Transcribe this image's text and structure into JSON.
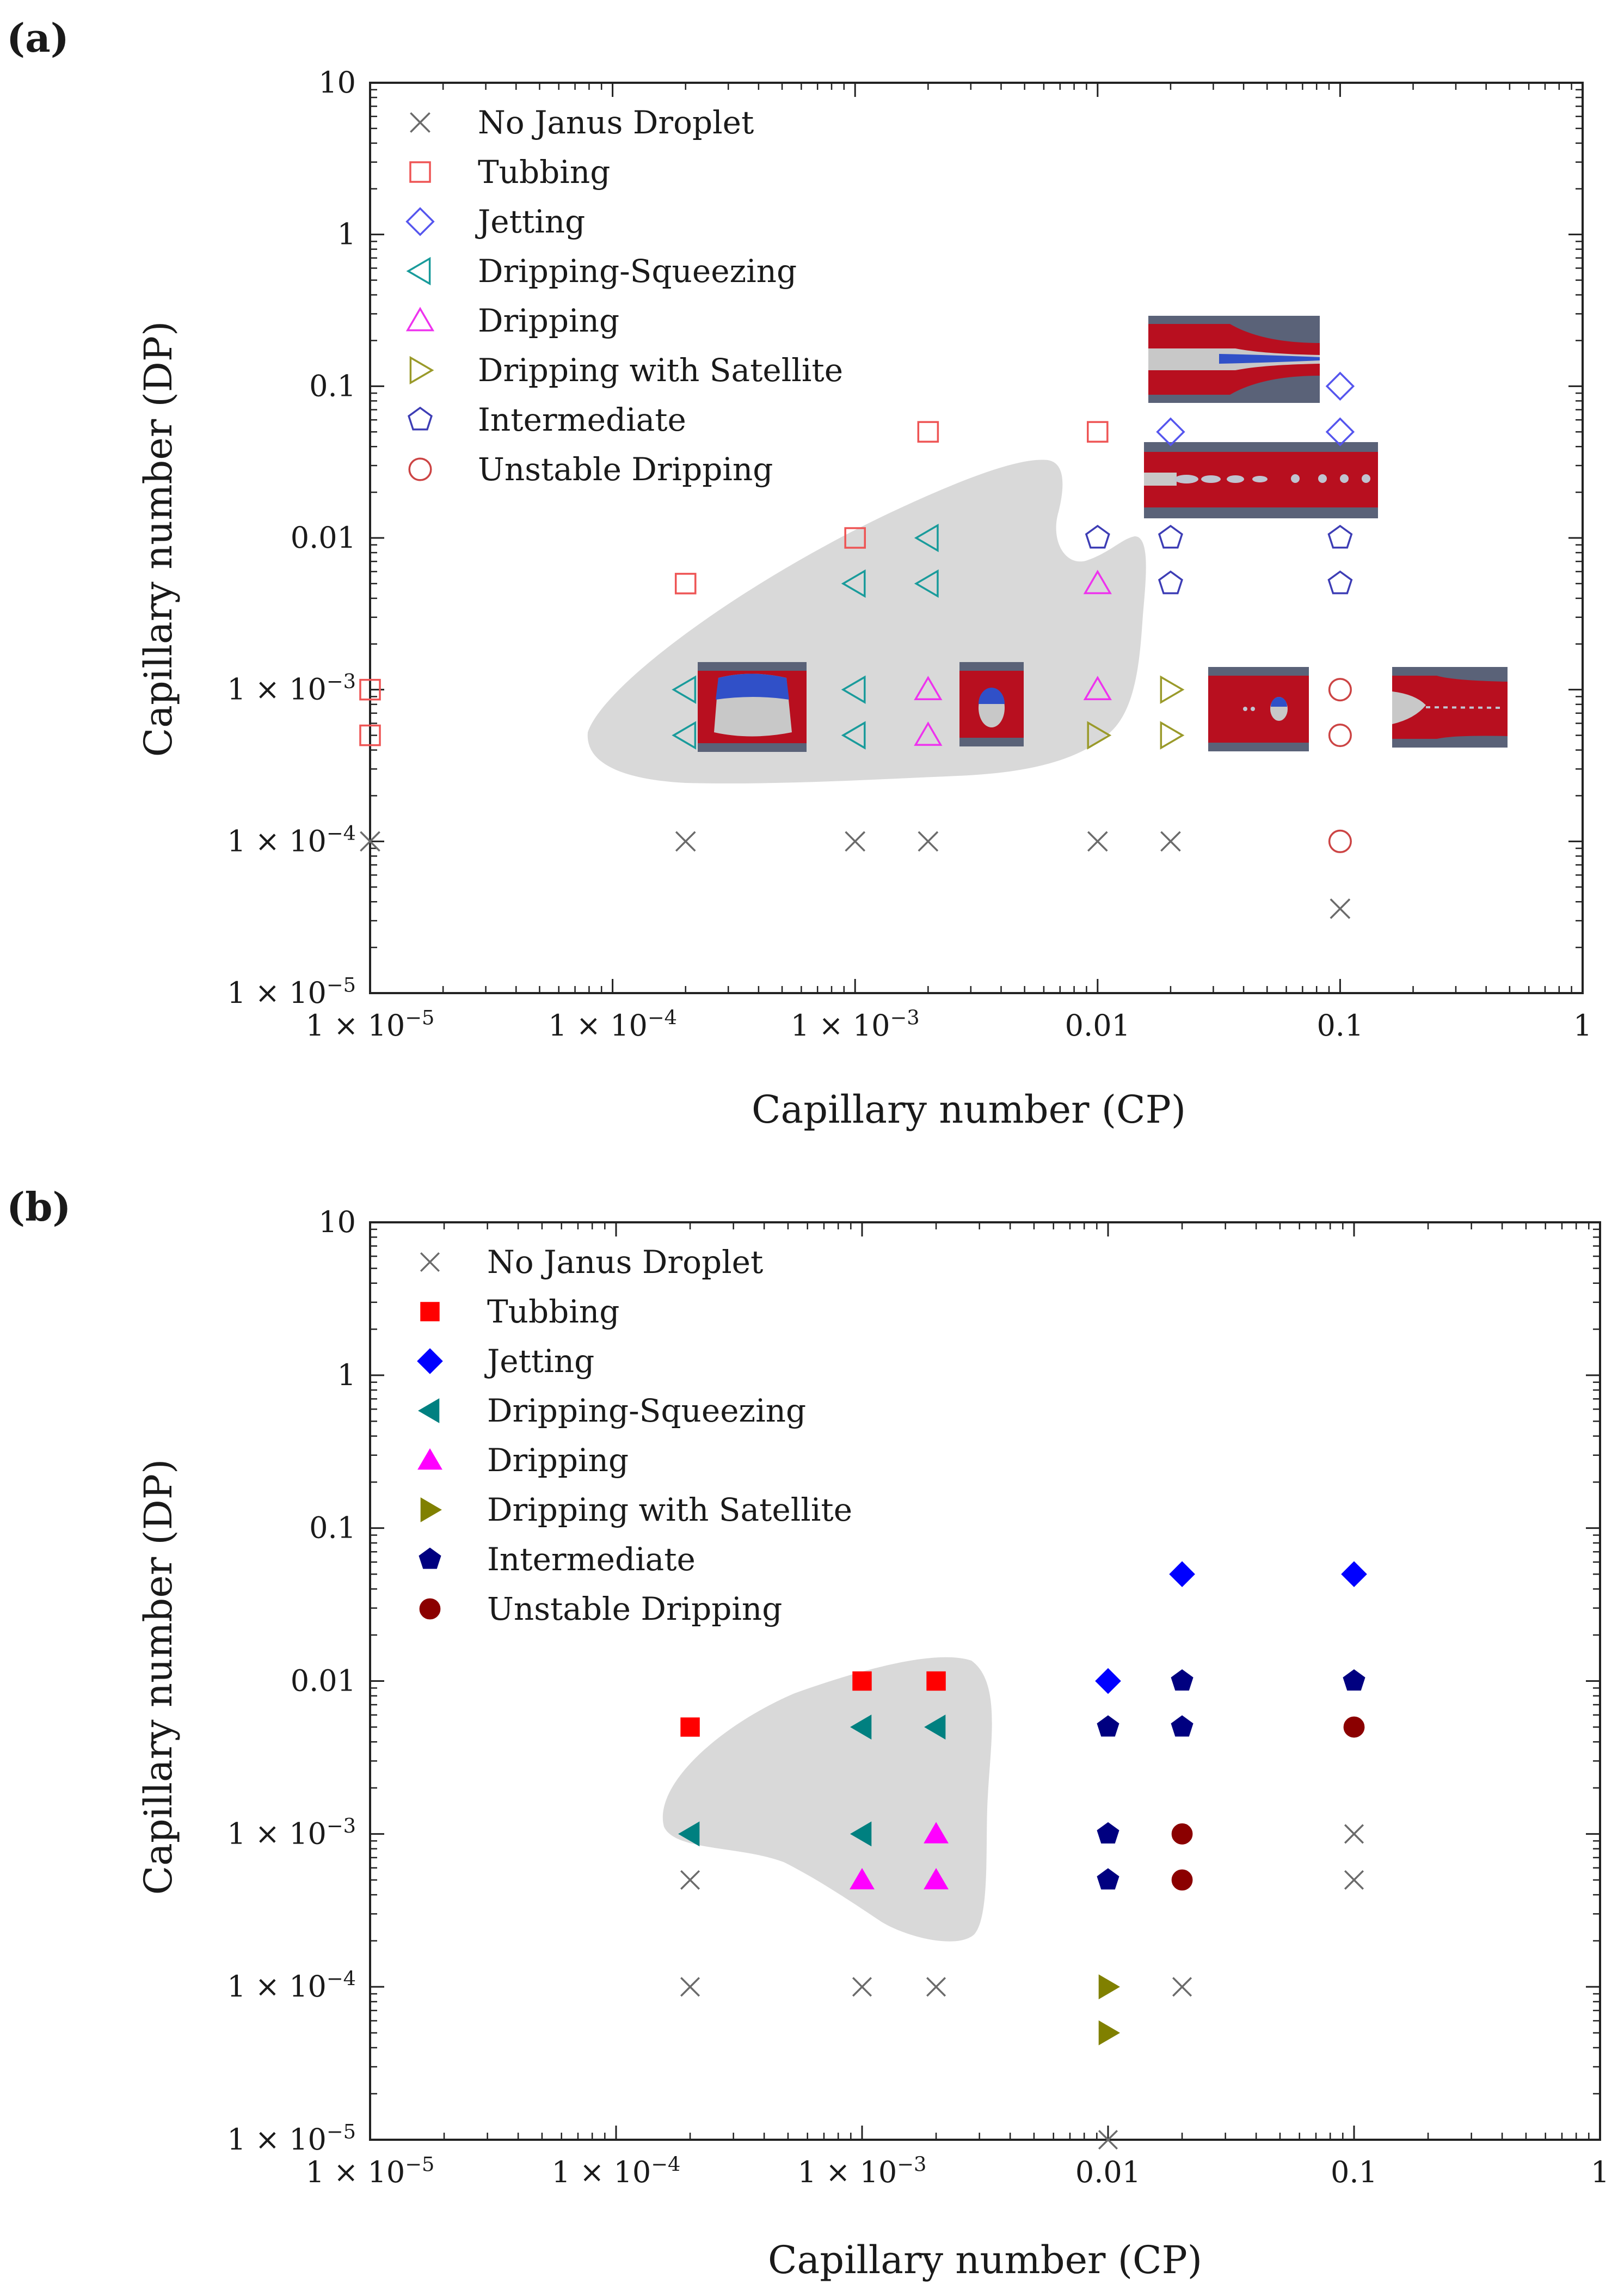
{
  "chart_data": [
    {
      "panel_label": "(a)",
      "type": "scatter",
      "xlabel": "Capillary number (CP)",
      "ylabel": "Capillary number (DP)",
      "x_scale": "log",
      "y_scale": "log",
      "xlim": [
        1e-05,
        1
      ],
      "ylim": [
        1e-05,
        10
      ],
      "x_ticks": [
        {
          "value": 1e-05,
          "label": "1 × 10",
          "exp": "−5"
        },
        {
          "value": 0.0001,
          "label": "1 × 10",
          "exp": "−4"
        },
        {
          "value": 0.001,
          "label": "1 × 10",
          "exp": "−3"
        },
        {
          "value": 0.01,
          "label": "0.01",
          "exp": ""
        },
        {
          "value": 0.1,
          "label": "0.1",
          "exp": ""
        },
        {
          "value": 1,
          "label": "1",
          "exp": ""
        }
      ],
      "y_ticks": [
        {
          "value": 1e-05,
          "label": "1 × 10",
          "exp": "−5"
        },
        {
          "value": 0.0001,
          "label": "1 × 10",
          "exp": "−4"
        },
        {
          "value": 0.001,
          "label": "1 × 10",
          "exp": "−3"
        },
        {
          "value": 0.01,
          "label": "0.01",
          "exp": ""
        },
        {
          "value": 0.1,
          "label": "0.1",
          "exp": ""
        },
        {
          "value": 1,
          "label": "1",
          "exp": ""
        },
        {
          "value": 10,
          "label": "10",
          "exp": ""
        }
      ],
      "legend_position": "top-left",
      "filled": false,
      "series": [
        {
          "name": "No Janus Droplet",
          "marker": "cross",
          "color": "#6b6b6b",
          "points": [
            [
              1e-05,
              0.0001
            ],
            [
              0.0002,
              0.0001
            ],
            [
              0.001,
              0.0001
            ],
            [
              0.002,
              0.0001
            ],
            [
              0.01,
              0.0001
            ],
            [
              0.02,
              0.0001
            ],
            [
              0.1,
              3.6e-05
            ]
          ]
        },
        {
          "name": "Tubbing",
          "marker": "square",
          "color": "#ee5555",
          "points": [
            [
              1e-05,
              0.001
            ],
            [
              1e-05,
              0.0005
            ],
            [
              0.0002,
              0.005
            ],
            [
              0.001,
              0.01
            ],
            [
              0.002,
              0.05
            ],
            [
              0.01,
              0.05
            ]
          ]
        },
        {
          "name": "Jetting",
          "marker": "diamond",
          "color": "#5555ee",
          "points": [
            [
              0.02,
              0.05
            ],
            [
              0.1,
              0.1
            ],
            [
              0.1,
              0.05
            ]
          ]
        },
        {
          "name": "Dripping-Squeezing",
          "marker": "tri-left",
          "color": "#199b9b",
          "points": [
            [
              0.0002,
              0.001
            ],
            [
              0.0002,
              0.0005
            ],
            [
              0.001,
              0.005
            ],
            [
              0.001,
              0.001
            ],
            [
              0.001,
              0.0005
            ],
            [
              0.002,
              0.01
            ],
            [
              0.002,
              0.005
            ]
          ]
        },
        {
          "name": "Dripping",
          "marker": "tri-up",
          "color": "#ee33ee",
          "points": [
            [
              0.002,
              0.001
            ],
            [
              0.002,
              0.0005
            ],
            [
              0.01,
              0.005
            ],
            [
              0.01,
              0.001
            ]
          ]
        },
        {
          "name": "Dripping with Satellite",
          "marker": "tri-right",
          "color": "#9a9a2a",
          "points": [
            [
              0.01,
              0.0005
            ],
            [
              0.02,
              0.001
            ],
            [
              0.02,
              0.0005
            ]
          ]
        },
        {
          "name": "Intermediate",
          "marker": "pentagon",
          "color": "#3d3db5",
          "points": [
            [
              0.01,
              0.01
            ],
            [
              0.02,
              0.01
            ],
            [
              0.02,
              0.005
            ],
            [
              0.1,
              0.01
            ],
            [
              0.1,
              0.005
            ]
          ]
        },
        {
          "name": "Unstable Dripping",
          "marker": "circle",
          "color": "#cc4444",
          "points": [
            [
              0.1,
              0.001
            ],
            [
              0.1,
              0.0005
            ],
            [
              0.1,
              0.0001
            ]
          ]
        }
      ]
    },
    {
      "panel_label": "(b)",
      "type": "scatter",
      "xlabel": "Capillary number (CP)",
      "ylabel": "Capillary number (DP)",
      "x_scale": "log",
      "y_scale": "log",
      "xlim": [
        1e-05,
        1
      ],
      "ylim": [
        1e-05,
        10
      ],
      "x_ticks": [
        {
          "value": 1e-05,
          "label": "1 × 10",
          "exp": "−5"
        },
        {
          "value": 0.0001,
          "label": "1 × 10",
          "exp": "−4"
        },
        {
          "value": 0.001,
          "label": "1 × 10",
          "exp": "−3"
        },
        {
          "value": 0.01,
          "label": "0.01",
          "exp": ""
        },
        {
          "value": 0.1,
          "label": "0.1",
          "exp": ""
        },
        {
          "value": 1,
          "label": "1",
          "exp": ""
        }
      ],
      "y_ticks": [
        {
          "value": 1e-05,
          "label": "1 × 10",
          "exp": "−5"
        },
        {
          "value": 0.0001,
          "label": "1 × 10",
          "exp": "−4"
        },
        {
          "value": 0.001,
          "label": "1 × 10",
          "exp": "−3"
        },
        {
          "value": 0.01,
          "label": "0.01",
          "exp": ""
        },
        {
          "value": 0.1,
          "label": "0.1",
          "exp": ""
        },
        {
          "value": 1,
          "label": "1",
          "exp": ""
        },
        {
          "value": 10,
          "label": "10",
          "exp": ""
        }
      ],
      "legend_position": "top-left",
      "filled": true,
      "series": [
        {
          "name": "No Janus Droplet",
          "marker": "cross",
          "color": "#6b6b6b",
          "points": [
            [
              0.0002,
              0.0005
            ],
            [
              0.0002,
              0.0001
            ],
            [
              0.001,
              0.0001
            ],
            [
              0.002,
              0.0001
            ],
            [
              0.02,
              0.0001
            ],
            [
              0.1,
              0.001
            ],
            [
              0.1,
              0.0005
            ],
            [
              0.01,
              1e-05
            ]
          ]
        },
        {
          "name": "Tubbing",
          "marker": "square",
          "color": "#ff0000",
          "points": [
            [
              0.0002,
              0.005
            ],
            [
              0.001,
              0.01
            ],
            [
              0.002,
              0.01
            ]
          ]
        },
        {
          "name": "Jetting",
          "marker": "diamond",
          "color": "#0000ff",
          "points": [
            [
              0.02,
              0.05
            ],
            [
              0.1,
              0.05
            ],
            [
              0.01,
              0.01
            ]
          ]
        },
        {
          "name": "Dripping-Squeezing",
          "marker": "tri-left",
          "color": "#008080",
          "points": [
            [
              0.0002,
              0.001
            ],
            [
              0.001,
              0.005
            ],
            [
              0.002,
              0.005
            ],
            [
              0.001,
              0.001
            ]
          ]
        },
        {
          "name": "Dripping",
          "marker": "tri-up",
          "color": "#ff00ff",
          "points": [
            [
              0.002,
              0.001
            ],
            [
              0.001,
              0.0005
            ],
            [
              0.002,
              0.0005
            ]
          ]
        },
        {
          "name": "Dripping with Satellite",
          "marker": "tri-right",
          "color": "#808000",
          "points": [
            [
              0.01,
              0.0001
            ],
            [
              0.01,
              5e-05
            ]
          ]
        },
        {
          "name": "Intermediate",
          "marker": "pentagon",
          "color": "#000080",
          "points": [
            [
              0.02,
              0.01
            ],
            [
              0.1,
              0.01
            ],
            [
              0.01,
              0.005
            ],
            [
              0.02,
              0.005
            ],
            [
              0.01,
              0.001
            ],
            [
              0.01,
              0.0005
            ]
          ]
        },
        {
          "name": "Unstable Dripping",
          "marker": "circle",
          "color": "#8b0000",
          "points": [
            [
              0.1,
              0.005
            ],
            [
              0.02,
              0.001
            ],
            [
              0.02,
              0.0005
            ]
          ]
        }
      ]
    }
  ]
}
